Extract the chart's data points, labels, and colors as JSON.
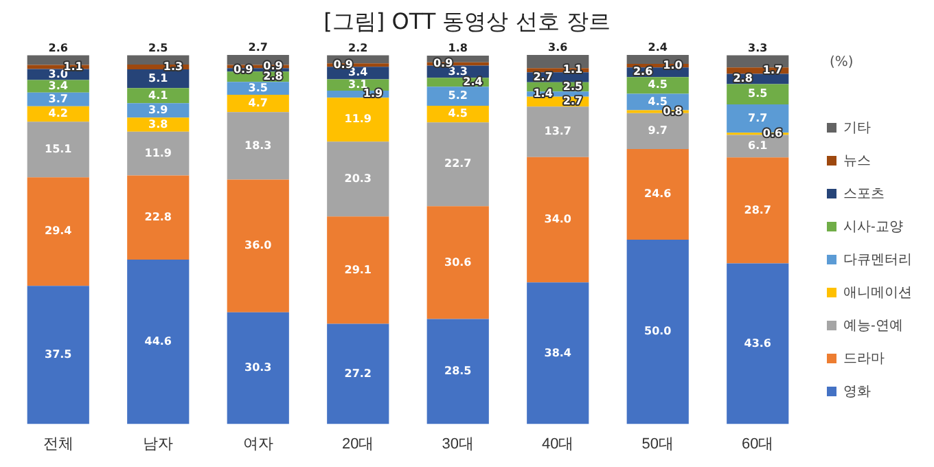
{
  "chart_data": {
    "type": "bar",
    "title": "[그림] OTT 동영상 선호 장르",
    "stacked": true,
    "data_labels": true,
    "legend": "right",
    "tick_labels": "x",
    "grid": false,
    "categories": [
      "전체",
      "남자",
      "여자",
      "20대",
      "30대",
      "40대",
      "50대",
      "60대"
    ],
    "annotations": [
      "(%)"
    ],
    "series": [
      {
        "name": "영화",
        "color": "#4472c4",
        "values": [
          37.5,
          44.6,
          30.3,
          27.2,
          28.5,
          38.4,
          50.0,
          43.6
        ],
        "value_labels": [
          "37.5",
          "44.6",
          "30.3",
          "27.2",
          "28.5",
          "38.4",
          "50.0",
          "43.6"
        ]
      },
      {
        "name": "드라마",
        "color": "#ed7d31",
        "values": [
          29.4,
          22.8,
          36.0,
          29.1,
          30.6,
          34.0,
          24.6,
          28.7
        ],
        "value_labels": [
          "29.4",
          "22.8",
          "36.0",
          "29.1",
          "30.6",
          "34.0",
          "24.6",
          "28.7"
        ]
      },
      {
        "name": "예능-연예",
        "color": "#a5a5a5",
        "values": [
          15.1,
          11.9,
          18.3,
          20.3,
          22.7,
          13.7,
          9.7,
          6.1
        ],
        "value_labels": [
          "15.1",
          "11.9",
          "18.3",
          "20.3",
          "22.7",
          "13.7",
          "9.7",
          "6.1"
        ]
      },
      {
        "name": "애니메이션",
        "color": "#ffc000",
        "values": [
          4.2,
          3.8,
          4.7,
          11.9,
          4.5,
          2.7,
          0.8,
          0.6
        ],
        "value_labels": [
          "4.2",
          "3.8",
          "4.7",
          "11.9",
          "4.5",
          "2.7",
          "0.8",
          "0.6"
        ]
      },
      {
        "name": "다큐멘터리",
        "color": "#5b9bd5",
        "values": [
          3.7,
          3.9,
          3.5,
          1.9,
          5.2,
          1.4,
          4.5,
          7.7
        ],
        "value_labels": [
          "3.7",
          "3.9",
          "3.5",
          "1.9",
          "5.2",
          "1.4",
          "4.5",
          "7.7"
        ]
      },
      {
        "name": "시사-교양",
        "color": "#70ad47",
        "values": [
          3.4,
          4.1,
          2.8,
          3.1,
          2.4,
          2.5,
          4.5,
          5.5
        ],
        "value_labels": [
          "3.4",
          "4.1",
          "2.8",
          "3.1",
          "2.4",
          "2.5",
          "4.5",
          "5.5"
        ]
      },
      {
        "name": "스포츠",
        "color": "#264478",
        "values": [
          3.0,
          5.1,
          0.9,
          3.4,
          3.3,
          2.7,
          2.6,
          2.8
        ],
        "value_labels": [
          "3.0",
          "5.1",
          "0.9",
          "3.4",
          "3.3",
          "2.7",
          "2.6",
          "2.8"
        ]
      },
      {
        "name": "뉴스",
        "color": "#9e480e",
        "values": [
          1.1,
          1.3,
          0.9,
          0.9,
          0.9,
          1.1,
          1.0,
          1.7
        ],
        "value_labels": [
          "1.1",
          "1.3",
          "0.9",
          "0.9",
          "0.9",
          "1.1",
          "1.0",
          "1.7"
        ]
      },
      {
        "name": "기타",
        "color": "#636363",
        "values": [
          2.6,
          2.5,
          2.7,
          2.2,
          1.8,
          3.6,
          2.4,
          3.3
        ],
        "value_labels": [
          "2.6",
          "2.5",
          "2.7",
          "2.2",
          "1.8",
          "3.6",
          "2.4",
          "3.3"
        ]
      }
    ]
  }
}
